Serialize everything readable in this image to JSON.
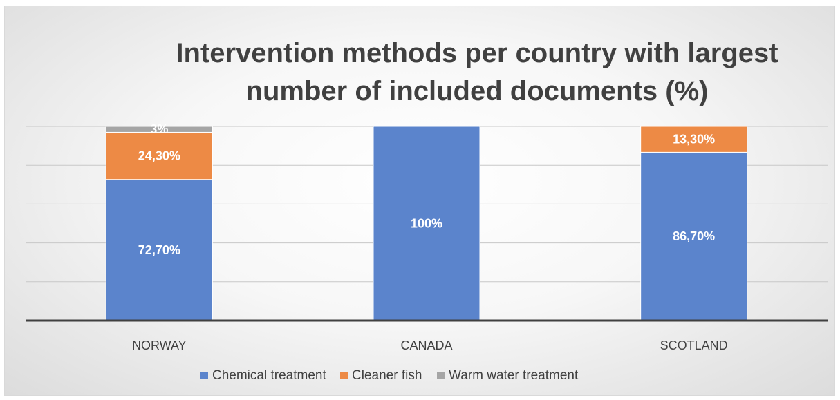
{
  "chart_data": {
    "type": "bar",
    "stacked": true,
    "title": "Intervention methods per country with largest number of included documents (%)",
    "title_lines": [
      "Intervention methods per country with largest",
      "number of included documents (%)"
    ],
    "categories": [
      "NORWAY",
      "CANADA",
      "SCOTLAND"
    ],
    "series": [
      {
        "name": "Chemical treatment",
        "color": "#5b84cc",
        "values": [
          72.7,
          100,
          86.7
        ],
        "labels": [
          "72,70%",
          "100%",
          "86,70%"
        ]
      },
      {
        "name": "Cleaner fish",
        "color": "#ed8a45",
        "values": [
          24.3,
          0,
          13.3
        ],
        "labels": [
          "24,30%",
          "",
          "13,30%"
        ]
      },
      {
        "name": "Warm water treatment",
        "color": "#a5a5a5",
        "values": [
          3,
          0,
          0
        ],
        "labels": [
          "3%",
          "",
          ""
        ]
      }
    ],
    "ylim": [
      0,
      100
    ],
    "grid": true,
    "legend_position": "bottom"
  }
}
